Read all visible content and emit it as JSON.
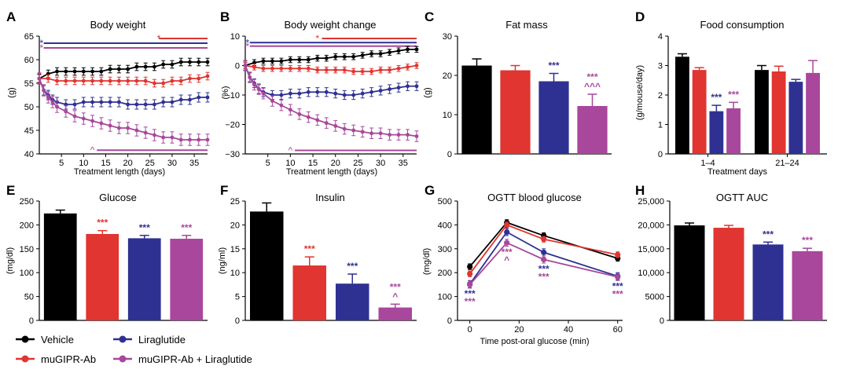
{
  "colors": {
    "vehicle": "#000000",
    "muGIPR-Ab": "#e03530",
    "Liraglutide": "#2e3192",
    "combo": "#a8479b"
  },
  "legend": [
    {
      "key": "vehicle",
      "label": "Vehicle"
    },
    {
      "key": "Liraglutide",
      "label": "Liraglutide"
    },
    {
      "key": "muGIPR-Ab",
      "label": "muGIPR-Ab"
    },
    {
      "key": "combo",
      "label": "muGIPR-Ab + Liraglutide"
    }
  ],
  "chart_data": [
    {
      "id": "A",
      "panel_label": "A",
      "type": "line",
      "title": "Body weight",
      "xlabel": "Treatment length (days)",
      "ylabel": "(g)",
      "xlim": [
        0,
        38
      ],
      "ylim": [
        40,
        65
      ],
      "xticks": [
        5,
        10,
        15,
        20,
        25,
        30,
        35
      ],
      "yticks": [
        40,
        45,
        50,
        55,
        60,
        65
      ],
      "series": [
        {
          "name": "Vehicle",
          "color_key": "vehicle",
          "x": [
            0,
            2,
            4,
            6,
            8,
            10,
            12,
            14,
            16,
            18,
            20,
            22,
            24,
            26,
            28,
            30,
            32,
            34,
            36,
            38
          ],
          "y": [
            56,
            57,
            57.5,
            57.5,
            57.5,
            57.5,
            57.5,
            57.5,
            58,
            58,
            58,
            58.5,
            58.5,
            58.5,
            59,
            59,
            59.5,
            59.5,
            59.5,
            59.5
          ],
          "err": 0.8
        },
        {
          "name": "muGIPR-Ab",
          "color_key": "muGIPR-Ab",
          "x": [
            0,
            2,
            4,
            6,
            8,
            10,
            12,
            14,
            16,
            18,
            20,
            22,
            24,
            26,
            28,
            30,
            32,
            34,
            36,
            38
          ],
          "y": [
            56,
            56,
            55.5,
            55.5,
            55.5,
            55.5,
            55.5,
            55.5,
            55.5,
            55.5,
            55.5,
            55.5,
            55.5,
            55,
            55,
            55.5,
            55.5,
            56,
            56,
            56.5
          ],
          "err": 0.8
        },
        {
          "name": "Liraglutide",
          "color_key": "Liraglutide",
          "x": [
            0,
            1,
            2,
            3,
            4,
            6,
            8,
            10,
            12,
            14,
            16,
            18,
            20,
            22,
            24,
            26,
            28,
            30,
            32,
            34,
            36,
            38
          ],
          "y": [
            56,
            53.5,
            52.5,
            51.5,
            51,
            50.5,
            50.5,
            51,
            51,
            51,
            51,
            51,
            50.5,
            50.5,
            50.5,
            50.5,
            51,
            51,
            51.5,
            51.5,
            52,
            52
          ],
          "err": 1.0
        },
        {
          "name": "muGIPR-Ab + Liraglutide",
          "color_key": "combo",
          "x": [
            0,
            1,
            2,
            3,
            4,
            6,
            8,
            10,
            12,
            14,
            16,
            18,
            20,
            22,
            24,
            26,
            28,
            30,
            32,
            34,
            36,
            38
          ],
          "y": [
            56,
            53.5,
            52,
            51,
            50,
            49,
            48,
            47.5,
            47,
            46.5,
            46,
            45.5,
            45.5,
            45,
            44.5,
            44,
            43.5,
            43.5,
            43,
            43,
            43,
            43
          ],
          "err": 1.2
        }
      ],
      "sig_lines": [
        {
          "y": 64.5,
          "x1": 27,
          "x2": 38,
          "color_key": "muGIPR-Ab",
          "mark": "*",
          "mark_x": 27
        },
        {
          "y": 63.5,
          "x1": 1,
          "x2": 38,
          "color_key": "Liraglutide",
          "mark": "*",
          "mark_x": 0.5
        },
        {
          "y": 62.5,
          "x1": 1,
          "x2": 38,
          "color_key": "combo",
          "mark": "*",
          "mark_x": 0.5
        },
        {
          "y": 40.8,
          "x1": 13,
          "x2": 38,
          "color_key": "combo",
          "mark": "^",
          "mark_x": 12
        }
      ]
    },
    {
      "id": "B",
      "panel_label": "B",
      "type": "line",
      "title": "Body weight change",
      "xlabel": "Treatment length (days)",
      "ylabel": "(%)",
      "xlim": [
        0,
        38
      ],
      "ylim": [
        -30,
        10
      ],
      "xticks": [
        5,
        10,
        15,
        20,
        25,
        30,
        35
      ],
      "yticks": [
        -30,
        -20,
        -10,
        0,
        10
      ],
      "ytick_labels": [
        "−30",
        "−20",
        "−10",
        "0",
        "10"
      ],
      "series": [
        {
          "name": "Vehicle",
          "color_key": "vehicle",
          "x": [
            0,
            2,
            4,
            6,
            8,
            10,
            12,
            14,
            16,
            18,
            20,
            22,
            24,
            26,
            28,
            30,
            32,
            34,
            36,
            38
          ],
          "y": [
            0,
            1,
            1.5,
            1.5,
            1.5,
            2,
            2,
            2,
            2.5,
            2.5,
            3,
            3,
            3,
            3.5,
            4,
            4,
            4.5,
            5,
            5.5,
            5.5
          ],
          "err": 1.0
        },
        {
          "name": "muGIPR-Ab",
          "color_key": "muGIPR-Ab",
          "x": [
            0,
            2,
            4,
            6,
            8,
            10,
            12,
            14,
            16,
            18,
            20,
            22,
            24,
            26,
            28,
            30,
            32,
            34,
            36,
            38
          ],
          "y": [
            0,
            -0.5,
            -1,
            -1,
            -1,
            -1,
            -1,
            -1,
            -1.5,
            -1.5,
            -1.5,
            -1.5,
            -2,
            -2,
            -2,
            -1.5,
            -1.5,
            -1,
            -0.5,
            0
          ],
          "err": 1.0
        },
        {
          "name": "Liraglutide",
          "color_key": "Liraglutide",
          "x": [
            0,
            1,
            2,
            3,
            4,
            6,
            8,
            10,
            12,
            14,
            16,
            18,
            20,
            22,
            24,
            26,
            28,
            30,
            32,
            34,
            36,
            38
          ],
          "y": [
            0,
            -4,
            -6,
            -8,
            -9,
            -10,
            -10,
            -9.5,
            -9.5,
            -9,
            -9,
            -9,
            -9.5,
            -10,
            -10,
            -9.5,
            -9,
            -8.5,
            -8,
            -7.5,
            -7,
            -7
          ],
          "err": 1.5
        },
        {
          "name": "muGIPR-Ab + Liraglutide",
          "color_key": "combo",
          "x": [
            0,
            1,
            2,
            3,
            4,
            6,
            8,
            10,
            12,
            14,
            16,
            18,
            20,
            22,
            24,
            26,
            28,
            30,
            32,
            34,
            36,
            38
          ],
          "y": [
            0,
            -4,
            -6.5,
            -8,
            -9.5,
            -12,
            -13.5,
            -15,
            -16.5,
            -17.5,
            -18.5,
            -19.5,
            -20.5,
            -21.5,
            -22,
            -22.5,
            -23,
            -23,
            -23.5,
            -23.5,
            -23.5,
            -24
          ],
          "err": 1.8
        }
      ],
      "sig_lines": [
        {
          "y": 9.2,
          "x1": 17,
          "x2": 38,
          "color_key": "muGIPR-Ab",
          "mark": "*",
          "mark_x": 16
        },
        {
          "y": 7.8,
          "x1": 1,
          "x2": 38,
          "color_key": "Liraglutide",
          "mark": "*",
          "mark_x": 0.5
        },
        {
          "y": 6.6,
          "x1": 1,
          "x2": 38,
          "color_key": "combo",
          "mark": "*",
          "mark_x": 0.5
        },
        {
          "y": -28.8,
          "x1": 11,
          "x2": 38,
          "color_key": "combo",
          "mark": "^",
          "mark_x": 10
        }
      ]
    },
    {
      "id": "C",
      "panel_label": "C",
      "type": "bar",
      "title": "Fat mass",
      "ylabel": "(g)",
      "ylim": [
        0,
        30
      ],
      "yticks": [
        0,
        10,
        20,
        30
      ],
      "series": [
        {
          "name": "Vehicle",
          "color_key": "vehicle",
          "value": 22.5,
          "err": 1.7,
          "sig": []
        },
        {
          "name": "muGIPR-Ab",
          "color_key": "muGIPR-Ab",
          "value": 21.3,
          "err": 1.2,
          "sig": []
        },
        {
          "name": "Liraglutide",
          "color_key": "Liraglutide",
          "value": 18.5,
          "err": 2.0,
          "sig": [
            {
              "text": "***",
              "color_key": "Liraglutide"
            }
          ]
        },
        {
          "name": "muGIPR-Ab + Liraglutide",
          "color_key": "combo",
          "value": 12.2,
          "err": 3.0,
          "sig": [
            {
              "text": "***",
              "color_key": "combo"
            },
            {
              "text": "^^^",
              "color_key": "combo"
            }
          ]
        }
      ]
    },
    {
      "id": "D",
      "panel_label": "D",
      "type": "bar",
      "title": "Food consumption",
      "xlabel": "Treatment days",
      "ylabel": "(g/mouse/day)",
      "ylim": [
        0,
        4
      ],
      "yticks": [
        0,
        1,
        2,
        3,
        4
      ],
      "groups": [
        {
          "label": "1–4",
          "values": [
            3.3,
            2.85,
            1.45,
            1.55
          ],
          "errs": [
            0.1,
            0.08,
            0.2,
            0.2
          ],
          "sig": [
            [],
            [],
            [
              {
                "text": "***",
                "color_key": "Liraglutide"
              }
            ],
            [
              {
                "text": "***",
                "color_key": "combo"
              }
            ]
          ]
        },
        {
          "label": "21–24",
          "values": [
            2.85,
            2.8,
            2.45,
            2.75
          ],
          "errs": [
            0.15,
            0.18,
            0.08,
            0.42
          ],
          "sig": [
            [],
            [],
            [],
            []
          ]
        }
      ],
      "series_color_keys": [
        "vehicle",
        "muGIPR-Ab",
        "Liraglutide",
        "combo"
      ]
    },
    {
      "id": "E",
      "panel_label": "E",
      "type": "bar",
      "title": "Glucose",
      "ylabel": "(mg/dl)",
      "ylim": [
        0,
        250
      ],
      "yticks": [
        0,
        50,
        100,
        150,
        200,
        250
      ],
      "series": [
        {
          "name": "Vehicle",
          "color_key": "vehicle",
          "value": 224,
          "err": 7,
          "sig": []
        },
        {
          "name": "muGIPR-Ab",
          "color_key": "muGIPR-Ab",
          "value": 181,
          "err": 7,
          "sig": [
            {
              "text": "***",
              "color_key": "muGIPR-Ab"
            }
          ]
        },
        {
          "name": "Liraglutide",
          "color_key": "Liraglutide",
          "value": 172,
          "err": 6,
          "sig": [
            {
              "text": "***",
              "color_key": "Liraglutide"
            }
          ]
        },
        {
          "name": "muGIPR-Ab + Liraglutide",
          "color_key": "combo",
          "value": 171,
          "err": 7,
          "sig": [
            {
              "text": "***",
              "color_key": "combo"
            }
          ]
        }
      ]
    },
    {
      "id": "F",
      "panel_label": "F",
      "type": "bar",
      "title": "Insulin",
      "ylabel": "(ng/ml)",
      "ylim": [
        0,
        25
      ],
      "yticks": [
        0,
        5,
        10,
        15,
        20,
        25
      ],
      "series": [
        {
          "name": "Vehicle",
          "color_key": "vehicle",
          "value": 22.8,
          "err": 1.8,
          "sig": []
        },
        {
          "name": "muGIPR-Ab",
          "color_key": "muGIPR-Ab",
          "value": 11.5,
          "err": 1.8,
          "sig": [
            {
              "text": "***",
              "color_key": "muGIPR-Ab"
            }
          ]
        },
        {
          "name": "Liraglutide",
          "color_key": "Liraglutide",
          "value": 7.7,
          "err": 2.0,
          "sig": [
            {
              "text": "***",
              "color_key": "Liraglutide"
            }
          ]
        },
        {
          "name": "muGIPR-Ab + Liraglutide",
          "color_key": "combo",
          "value": 2.7,
          "err": 0.7,
          "sig": [
            {
              "text": "***",
              "color_key": "combo"
            },
            {
              "text": "^",
              "color_key": "combo"
            }
          ]
        }
      ]
    },
    {
      "id": "G",
      "panel_label": "G",
      "type": "line",
      "title": "OGTT blood glucose",
      "xlabel": "Time post-oral glucose (min)",
      "ylabel": "(mg/dl)",
      "xlim": [
        -5,
        62
      ],
      "ylim": [
        0,
        500
      ],
      "xticks": [
        0,
        20,
        40,
        60
      ],
      "yticks": [
        0,
        100,
        200,
        300,
        400,
        500
      ],
      "series": [
        {
          "name": "Vehicle",
          "color_key": "vehicle",
          "x": [
            0,
            15,
            30,
            60
          ],
          "y": [
            225,
            410,
            355,
            260
          ],
          "err": 12
        },
        {
          "name": "muGIPR-Ab",
          "color_key": "muGIPR-Ab",
          "x": [
            0,
            15,
            30,
            60
          ],
          "y": [
            195,
            400,
            340,
            275
          ],
          "err": 12
        },
        {
          "name": "Liraglutide",
          "color_key": "Liraglutide",
          "x": [
            0,
            15,
            30,
            60
          ],
          "y": [
            152,
            370,
            285,
            185
          ],
          "err": 15
        },
        {
          "name": "muGIPR-Ab + Liraglutide",
          "color_key": "combo",
          "x": [
            0,
            15,
            30,
            60
          ],
          "y": [
            150,
            325,
            255,
            182
          ],
          "err": 15
        }
      ],
      "point_sigs": [
        {
          "x": 0,
          "below": 152,
          "marks": [
            {
              "text": "***",
              "color_key": "Liraglutide"
            },
            {
              "text": "***",
              "color_key": "combo"
            }
          ]
        },
        {
          "x": 15,
          "below": 325,
          "marks": [
            {
              "text": "***",
              "color_key": "combo"
            },
            {
              "text": "^",
              "color_key": "combo"
            }
          ]
        },
        {
          "x": 30,
          "below": 255,
          "marks": [
            {
              "text": "***",
              "color_key": "Liraglutide"
            },
            {
              "text": "***",
              "color_key": "combo"
            }
          ]
        },
        {
          "x": 60,
          "below": 182,
          "marks": [
            {
              "text": "***",
              "color_key": "Liraglutide"
            },
            {
              "text": "***",
              "color_key": "combo"
            }
          ]
        }
      ]
    },
    {
      "id": "H",
      "panel_label": "H",
      "type": "bar",
      "title": "OGTT AUC",
      "ylim": [
        0,
        25000
      ],
      "yticks": [
        0,
        5000,
        10000,
        15000,
        20000,
        25000
      ],
      "ytick_labels": [
        "0",
        "5000",
        "10,000",
        "15,000",
        "20,000",
        "25,000"
      ],
      "series": [
        {
          "name": "Vehicle",
          "color_key": "vehicle",
          "value": 19900,
          "err": 500,
          "sig": []
        },
        {
          "name": "muGIPR-Ab",
          "color_key": "muGIPR-Ab",
          "value": 19400,
          "err": 500,
          "sig": []
        },
        {
          "name": "Liraglutide",
          "color_key": "Liraglutide",
          "value": 15900,
          "err": 500,
          "sig": [
            {
              "text": "***",
              "color_key": "Liraglutide"
            }
          ]
        },
        {
          "name": "muGIPR-Ab + Liraglutide",
          "color_key": "combo",
          "value": 14500,
          "err": 600,
          "sig": [
            {
              "text": "***",
              "color_key": "combo"
            }
          ]
        }
      ]
    }
  ]
}
